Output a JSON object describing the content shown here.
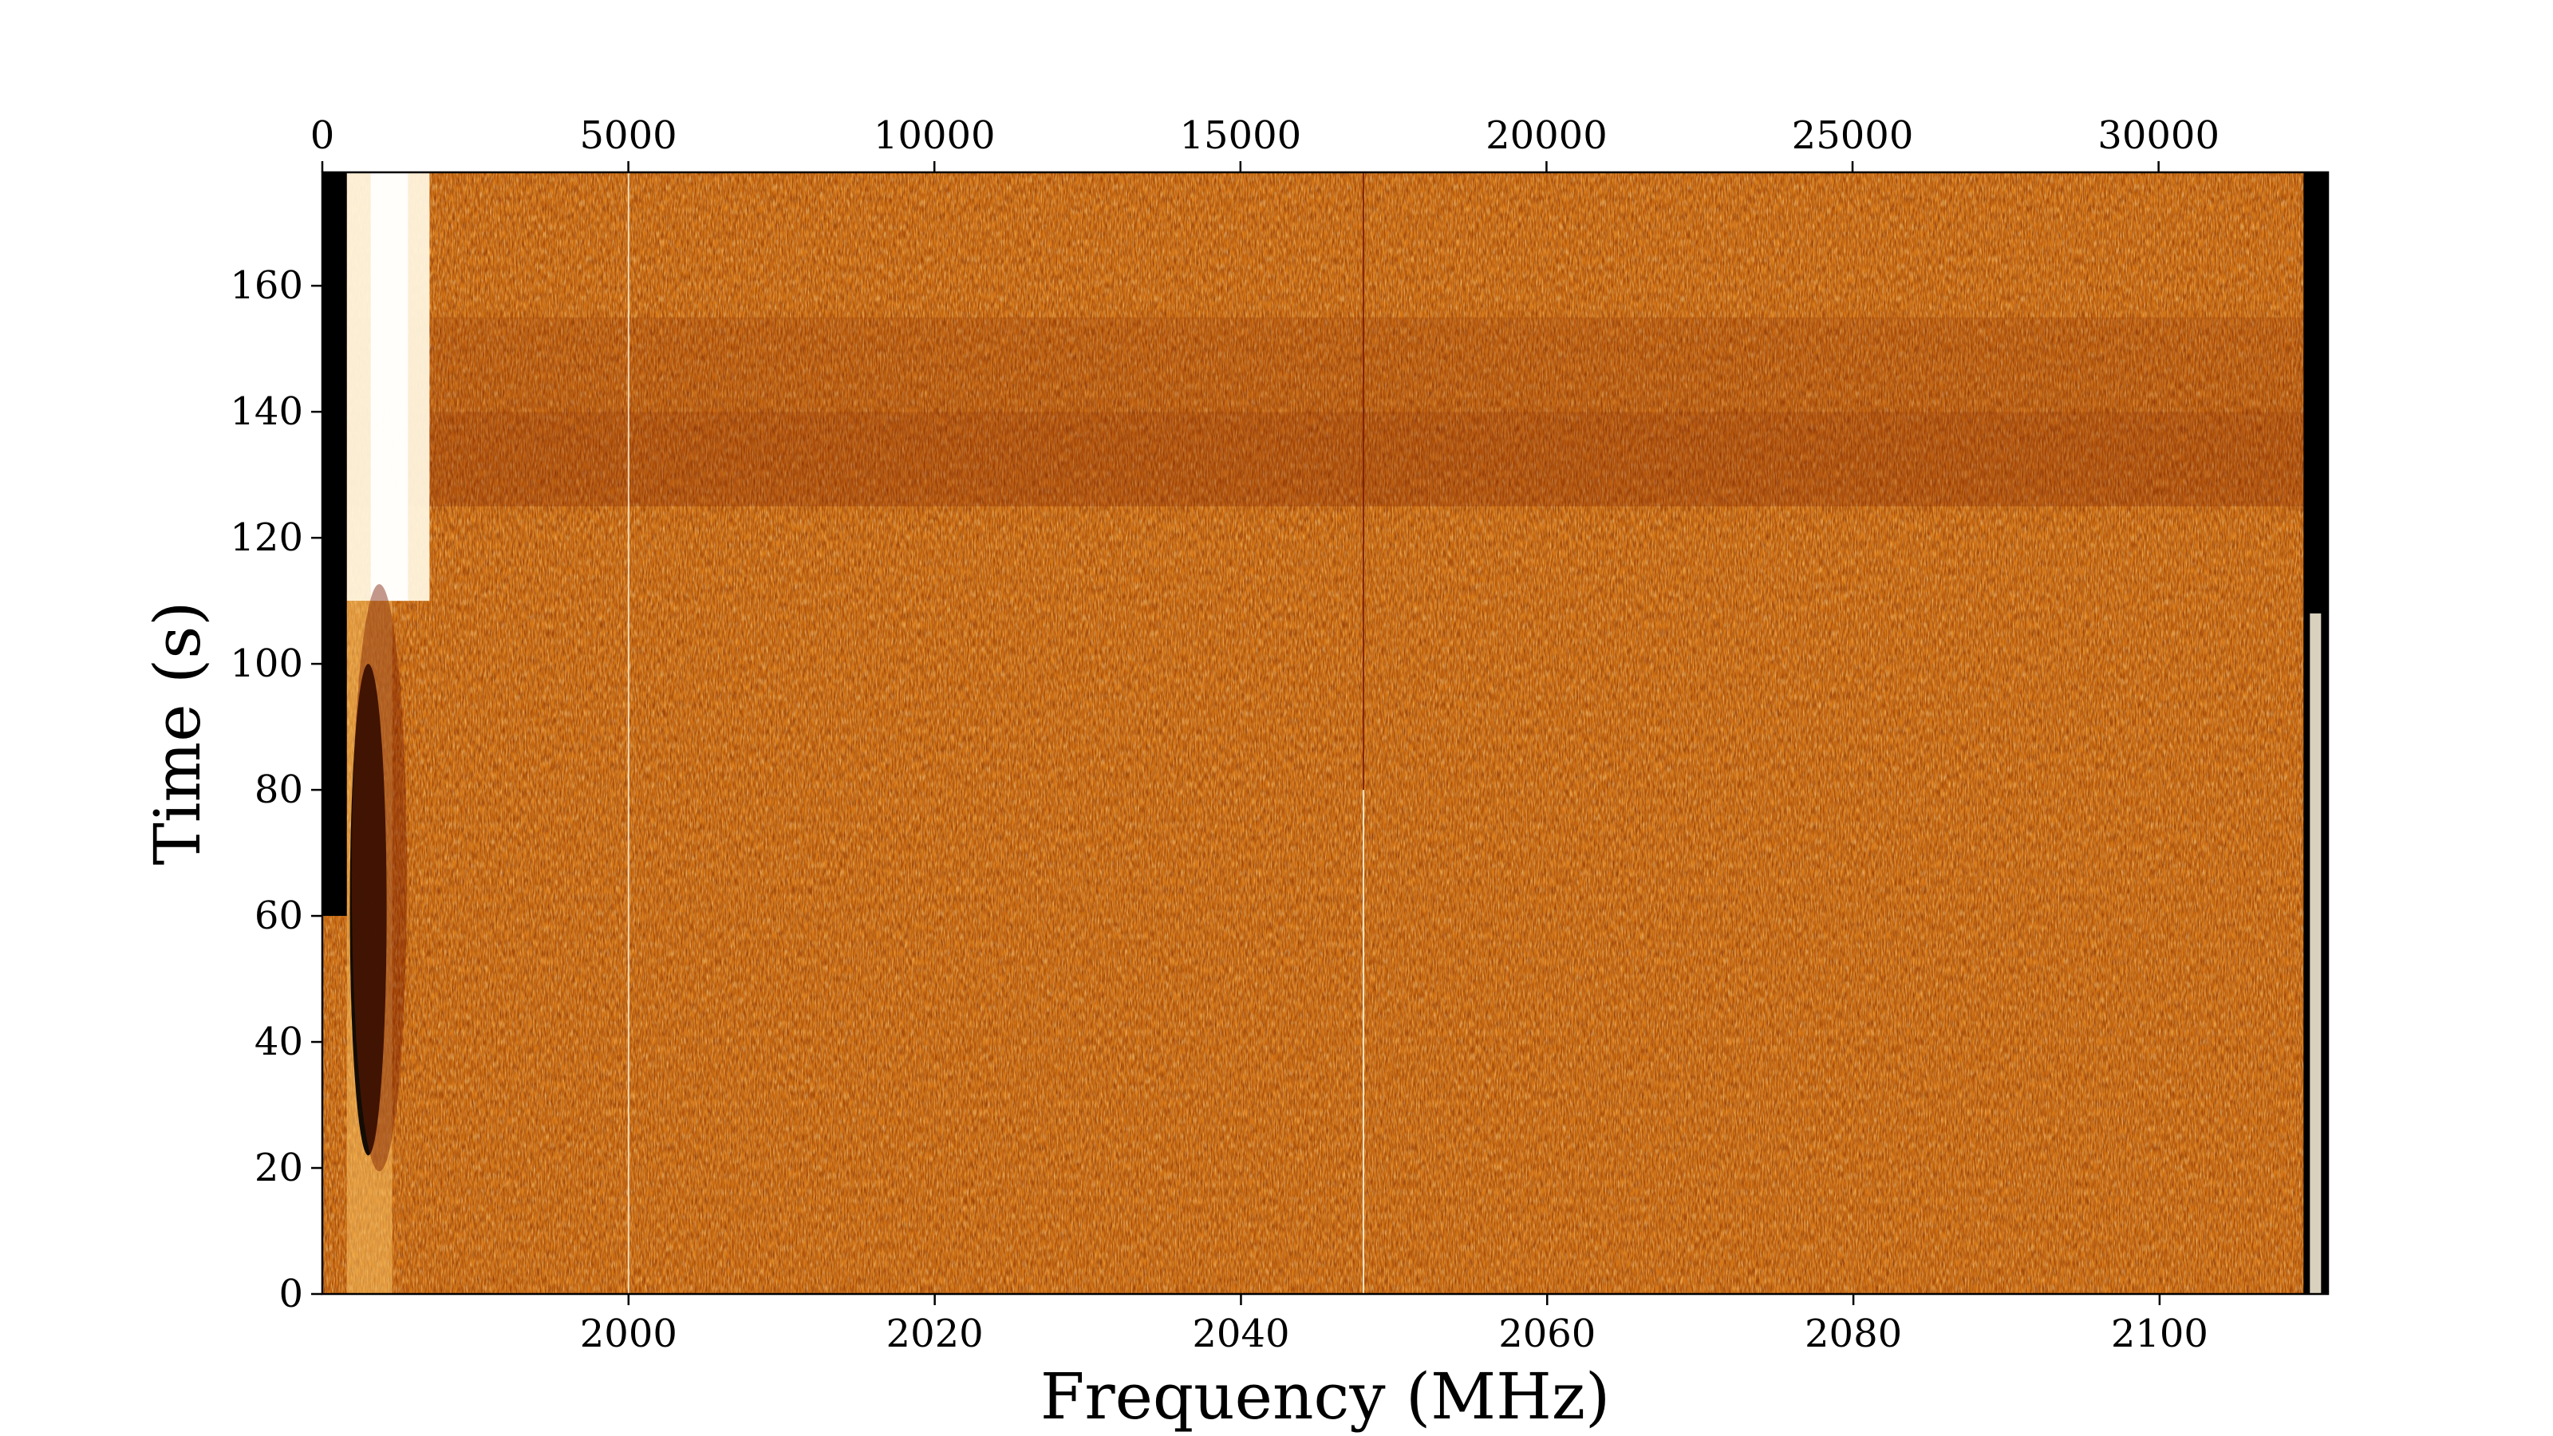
{
  "chart_data": {
    "type": "heatmap",
    "title": "",
    "xlabel": "Frequency (MHz)",
    "ylabel": "Time (s)",
    "top_axis": {
      "xlim": [
        0,
        32768
      ],
      "ticks": [
        0,
        5000,
        10000,
        15000,
        20000,
        25000,
        30000
      ],
      "tick_labels": [
        "0",
        "5000",
        "10000",
        "15000",
        "20000",
        "25000",
        "30000"
      ]
    },
    "bottom_axis": {
      "xlim": [
        1980.0,
        2111.0
      ],
      "ticks": [
        2000,
        2020,
        2040,
        2060,
        2080,
        2100
      ],
      "tick_labels": [
        "2000",
        "2020",
        "2040",
        "2060",
        "2080",
        "2100"
      ]
    },
    "y_axis": {
      "ylim": [
        0,
        178
      ],
      "ticks": [
        0,
        20,
        40,
        60,
        80,
        100,
        120,
        140,
        160
      ],
      "tick_labels": [
        "0",
        "20",
        "40",
        "60",
        "80",
        "100",
        "120",
        "140",
        "160"
      ]
    },
    "colormap": "afmhot",
    "colormap_stops": [
      "#000000",
      "#7a1c00",
      "#c65a0a",
      "#e8901e",
      "#f8c060",
      "#fff6de",
      "#ffffff"
    ],
    "features": {
      "left_edge_dark_band_mhz": [
        1980.0,
        1981.6
      ],
      "left_bright_band_mhz": [
        1981.6,
        1987.0
      ],
      "left_bright_band_time_s": [
        110,
        178
      ],
      "left_dark_streak_mhz": [
        1981.8,
        1984.2
      ],
      "left_dark_streak_time_s": [
        22,
        100
      ],
      "right_edge_dark_band_mhz": [
        2109.4,
        2111.0
      ],
      "vertical_line_1_mhz": 2000.0,
      "vertical_line_2_mhz": 2048.0,
      "dark_horizontal_band_time_s": [
        125,
        140
      ],
      "dark_horizontal_band_2_time_s": [
        140,
        155
      ]
    },
    "grid": false
  }
}
